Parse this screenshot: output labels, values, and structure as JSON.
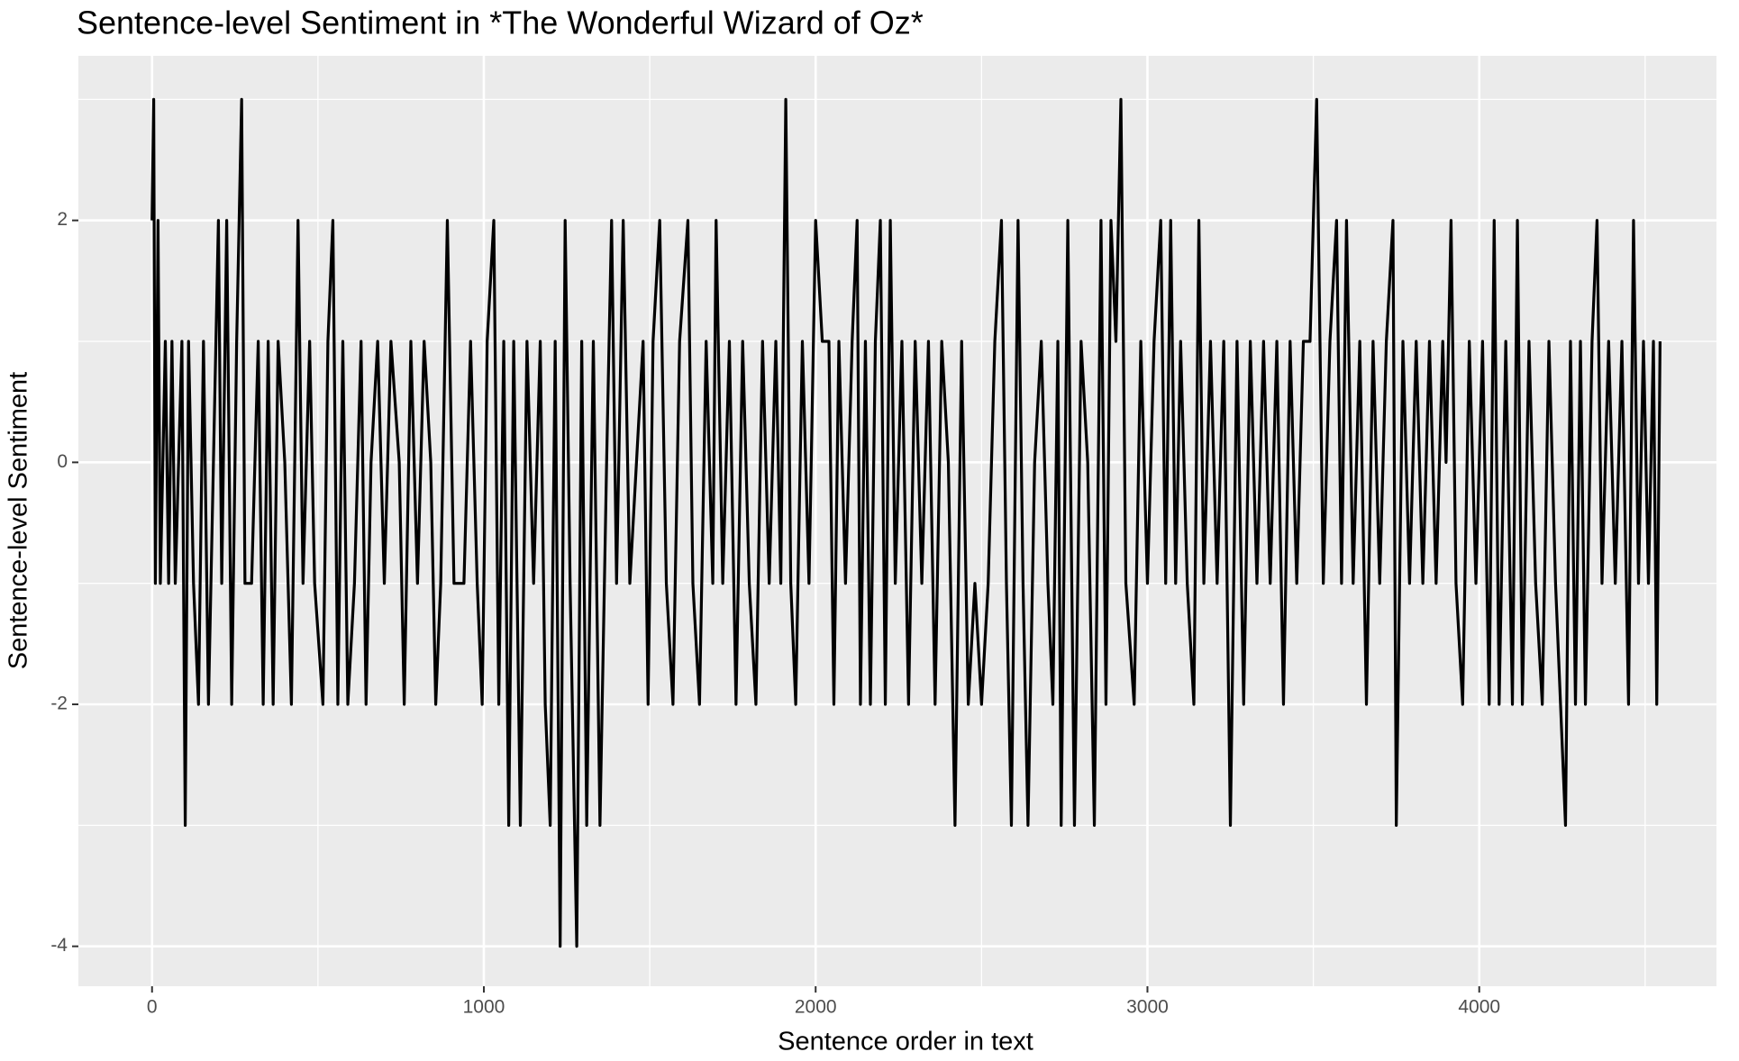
{
  "chart_data": {
    "type": "line",
    "title": "Sentence-level Sentiment in *The Wonderful Wizard of Oz*",
    "x_label": "Sentence order in text",
    "y_label": "Sentence-level Sentiment",
    "x": [
      0,
      5,
      10,
      18,
      25,
      40,
      50,
      60,
      70,
      80,
      90,
      100,
      110,
      125,
      140,
      155,
      170,
      185,
      200,
      210,
      225,
      240,
      255,
      270,
      280,
      300,
      320,
      335,
      350,
      365,
      380,
      400,
      420,
      440,
      455,
      475,
      490,
      515,
      530,
      545,
      560,
      575,
      590,
      610,
      630,
      645,
      660,
      680,
      700,
      720,
      745,
      760,
      780,
      800,
      820,
      840,
      855,
      870,
      890,
      910,
      940,
      960,
      980,
      995,
      1010,
      1030,
      1045,
      1060,
      1075,
      1090,
      1110,
      1130,
      1150,
      1170,
      1185,
      1200,
      1215,
      1230,
      1245,
      1260,
      1280,
      1295,
      1310,
      1330,
      1350,
      1370,
      1385,
      1400,
      1420,
      1440,
      1460,
      1480,
      1495,
      1510,
      1530,
      1550,
      1570,
      1590,
      1615,
      1630,
      1650,
      1670,
      1690,
      1700,
      1720,
      1740,
      1760,
      1780,
      1800,
      1820,
      1840,
      1860,
      1880,
      1895,
      1910,
      1925,
      1940,
      1960,
      1980,
      2000,
      2020,
      2040,
      2055,
      2070,
      2090,
      2110,
      2125,
      2135,
      2150,
      2165,
      2180,
      2195,
      2210,
      2225,
      2240,
      2260,
      2280,
      2300,
      2320,
      2340,
      2360,
      2380,
      2400,
      2420,
      2440,
      2460,
      2480,
      2500,
      2520,
      2540,
      2560,
      2575,
      2590,
      2610,
      2625,
      2640,
      2660,
      2680,
      2700,
      2715,
      2730,
      2740,
      2760,
      2780,
      2800,
      2820,
      2840,
      2860,
      2875,
      2890,
      2905,
      2920,
      2935,
      2960,
      2980,
      3000,
      3020,
      3040,
      3055,
      3070,
      3085,
      3100,
      3120,
      3140,
      3155,
      3170,
      3190,
      3210,
      3230,
      3250,
      3270,
      3290,
      3310,
      3330,
      3350,
      3370,
      3390,
      3410,
      3430,
      3450,
      3470,
      3490,
      3510,
      3530,
      3550,
      3570,
      3585,
      3600,
      3620,
      3640,
      3660,
      3680,
      3700,
      3720,
      3740,
      3750,
      3770,
      3790,
      3810,
      3830,
      3850,
      3870,
      3890,
      3900,
      3915,
      3930,
      3950,
      3970,
      3990,
      4010,
      4030,
      4045,
      4060,
      4080,
      4100,
      4115,
      4130,
      4150,
      4170,
      4190,
      4210,
      4230,
      4245,
      4260,
      4275,
      4290,
      4305,
      4320,
      4340,
      4355,
      4370,
      4390,
      4410,
      4430,
      4450,
      4465,
      4480,
      4495,
      4510,
      4525,
      4535,
      4545
    ],
    "values": [
      2,
      3,
      -1,
      2,
      -1,
      1,
      -1,
      1,
      -1,
      0,
      1,
      -3,
      1,
      -1,
      -2,
      1,
      -2,
      0,
      2,
      -1,
      2,
      -2,
      1,
      3,
      -1,
      -1,
      1,
      -2,
      1,
      -2,
      1,
      0,
      -2,
      2,
      -1,
      1,
      -1,
      -2,
      1,
      2,
      -2,
      1,
      -2,
      -1,
      1,
      -2,
      0,
      1,
      -1,
      1,
      0,
      -2,
      1,
      -1,
      1,
      0,
      -2,
      -1,
      2,
      -1,
      -1,
      1,
      -1,
      -2,
      1,
      2,
      -2,
      1,
      -3,
      1,
      -3,
      1,
      -1,
      1,
      -2,
      -3,
      1,
      -4,
      2,
      -1,
      -4,
      1,
      -3,
      1,
      -3,
      0,
      2,
      -1,
      2,
      -1,
      0,
      1,
      -2,
      1,
      2,
      -1,
      -2,
      1,
      2,
      -1,
      -2,
      1,
      -1,
      2,
      -1,
      1,
      -2,
      1,
      -1,
      -2,
      1,
      -1,
      1,
      -1,
      3,
      -1,
      -2,
      1,
      -1,
      2,
      1,
      1,
      -2,
      1,
      -1,
      1,
      2,
      -2,
      1,
      -2,
      1,
      2,
      -2,
      2,
      -1,
      1,
      -2,
      1,
      -1,
      1,
      -2,
      1,
      0,
      -3,
      1,
      -2,
      -1,
      -2,
      -1,
      1,
      2,
      -1,
      -3,
      2,
      -1,
      -3,
      0,
      1,
      -1,
      -2,
      1,
      -3,
      2,
      -3,
      1,
      0,
      -3,
      2,
      -2,
      2,
      1,
      3,
      -1,
      -2,
      1,
      -1,
      1,
      2,
      -1,
      2,
      -1,
      1,
      -1,
      -2,
      2,
      -1,
      1,
      -1,
      1,
      -3,
      1,
      -2,
      1,
      -1,
      1,
      -1,
      1,
      -2,
      1,
      -1,
      1,
      1,
      3,
      -1,
      1,
      2,
      -1,
      2,
      -1,
      1,
      -2,
      1,
      -1,
      1,
      2,
      -3,
      1,
      -1,
      1,
      -1,
      1,
      -1,
      1,
      0,
      2,
      -1,
      -2,
      1,
      -1,
      1,
      -2,
      2,
      -2,
      1,
      -2,
      2,
      -2,
      1,
      -1,
      -2,
      1,
      -1,
      -2,
      -3,
      1,
      -2,
      1,
      -2,
      1,
      2,
      -1,
      1,
      -1,
      1,
      -2,
      2,
      -1,
      1,
      -1,
      1,
      -2,
      1
    ],
    "color": "#000000",
    "xlim": [
      -222,
      4715
    ],
    "xticks": [
      0,
      1000,
      2000,
      3000,
      4000
    ],
    "ylim": [
      -4.33,
      3.36
    ],
    "yticks": [
      -4,
      -2,
      0,
      2
    ],
    "grid": true
  }
}
